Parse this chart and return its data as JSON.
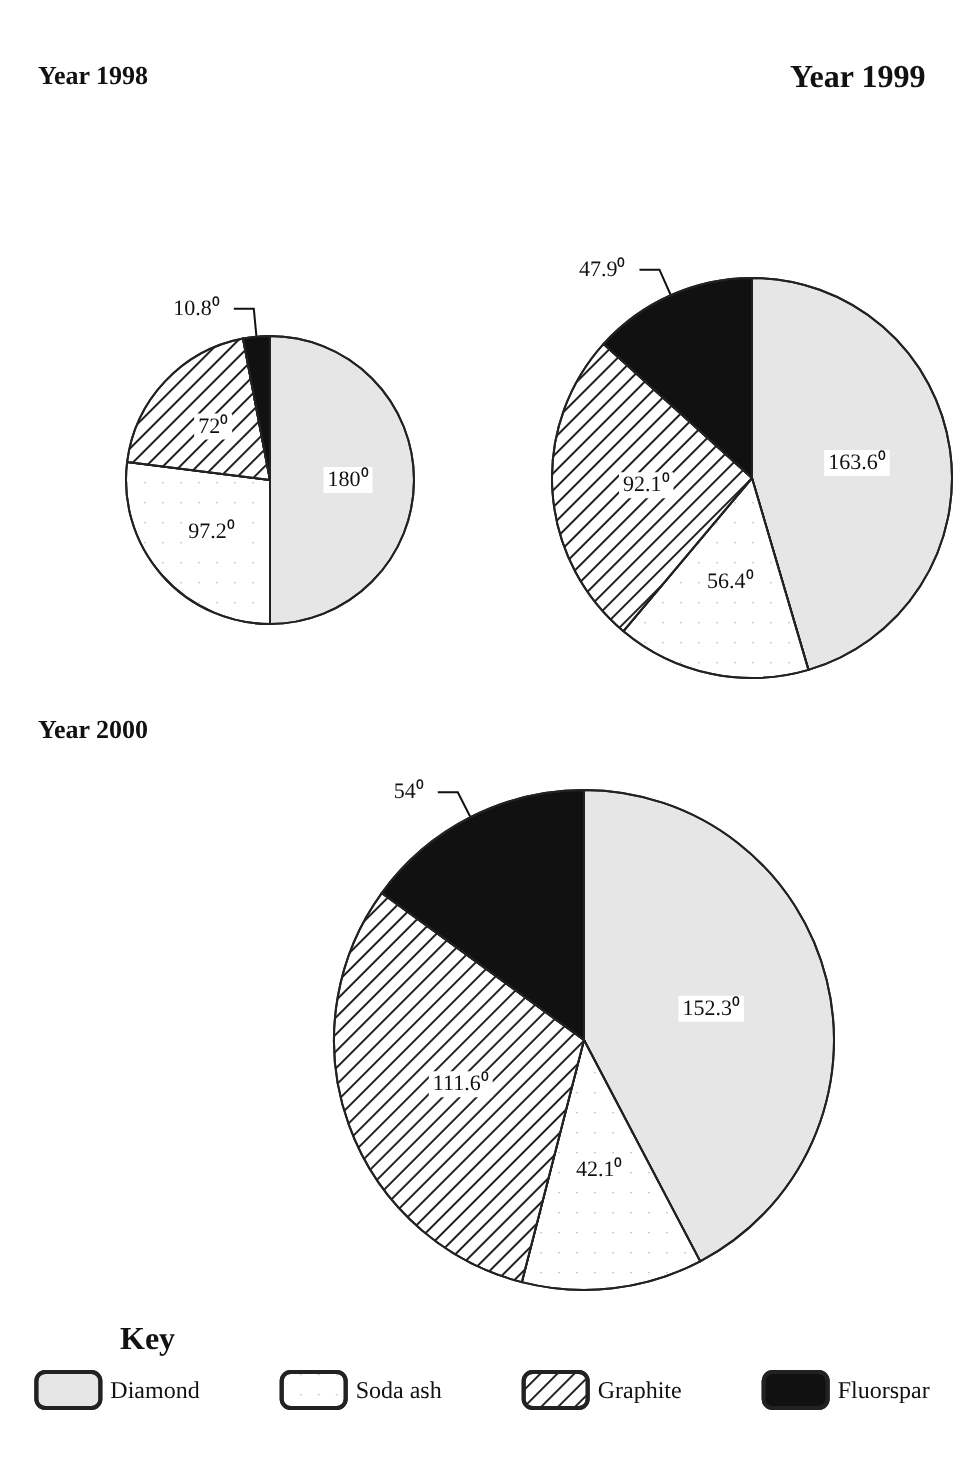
{
  "chart_data": [
    {
      "type": "pie",
      "title": "Year 1998",
      "values": [
        180,
        97.2,
        72,
        10.8
      ],
      "colors": [
        "#e6e6e6",
        "#ffffff",
        "#ffffff",
        "#111111"
      ],
      "value_labels": [
        "180⁰",
        "97.2⁰",
        "72⁰",
        "10.8⁰"
      ],
      "legend": false
    },
    {
      "type": "pie",
      "title": "Year 1999",
      "values": [
        163.6,
        56.4,
        92.1,
        47.9
      ],
      "colors": [
        "#e6e6e6",
        "#ffffff",
        "#ffffff",
        "#111111"
      ],
      "value_labels": [
        "163.6⁰",
        "56.4⁰",
        "92.1⁰",
        "47.9⁰"
      ],
      "legend": false
    },
    {
      "type": "pie",
      "title": "Year 2000",
      "categories": [
        "Diamond",
        "Soda ash",
        "Graphite",
        "Fluorspar"
      ],
      "values": [
        152.3,
        42.1,
        111.6,
        54
      ],
      "colors": [
        "#e6e6e6",
        "#ffffff",
        "#ffffff",
        "#111111"
      ],
      "value_labels": [
        "152.3⁰",
        "42.1⁰",
        "111.6⁰",
        "54⁰"
      ],
      "legend": "bottom",
      "legend_title": "Key"
    }
  ]
}
